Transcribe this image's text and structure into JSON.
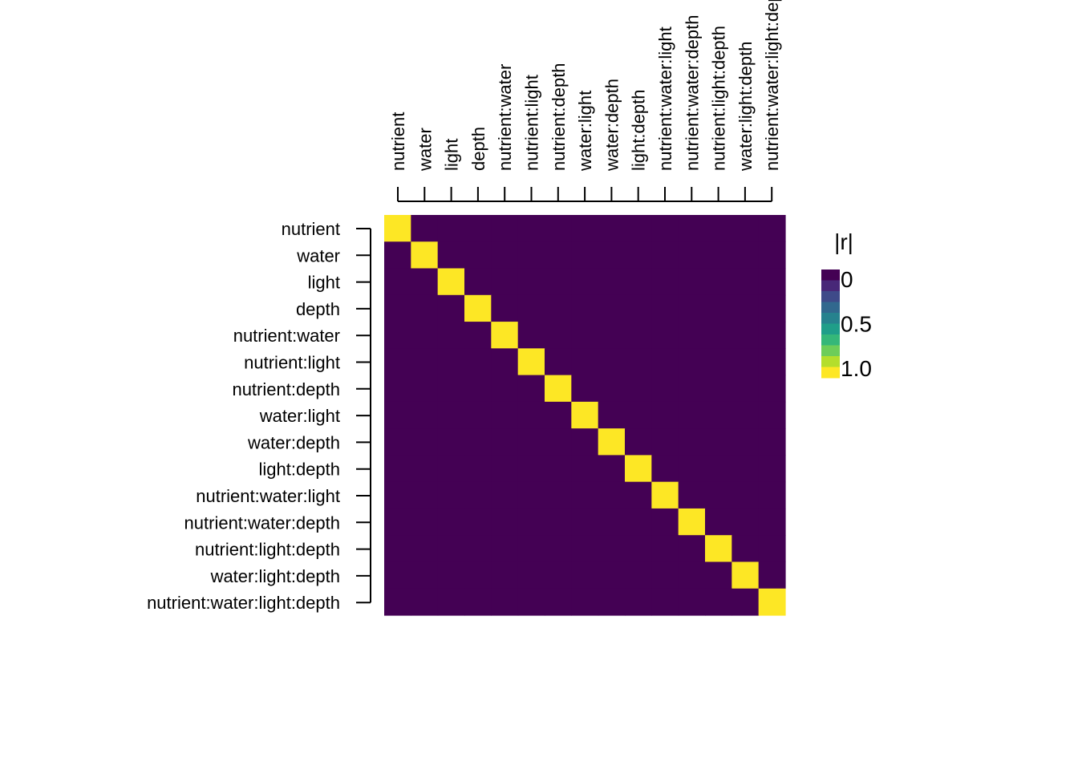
{
  "chart_data": {
    "type": "heatmap",
    "title": "",
    "xlabel": "",
    "ylabel": "",
    "labels": [
      "nutrient",
      "water",
      "light",
      "depth",
      "nutrient:water",
      "nutrient:light",
      "nutrient:depth",
      "water:light",
      "water:depth",
      "light:depth",
      "nutrient:water:light",
      "nutrient:water:depth",
      "nutrient:light:depth",
      "water:light:depth",
      "nutrient:water:light:depth"
    ],
    "value_rule": "identity",
    "diagonal_value": 1.0,
    "offdiagonal_value": 0.0,
    "color_scale": {
      "name": "viridis",
      "min": 0,
      "max": 1,
      "colors": [
        "#440154",
        "#482878",
        "#3E4A89",
        "#31688E",
        "#26828E",
        "#1F9E89",
        "#35B779",
        "#6DCD59",
        "#B4DE2C",
        "#FDE725"
      ]
    },
    "legend": {
      "title": "|r|",
      "ticks": [
        "0",
        "0.5",
        "1.0"
      ],
      "tick_values": [
        0,
        0.5,
        1.0
      ],
      "position": "right"
    }
  }
}
